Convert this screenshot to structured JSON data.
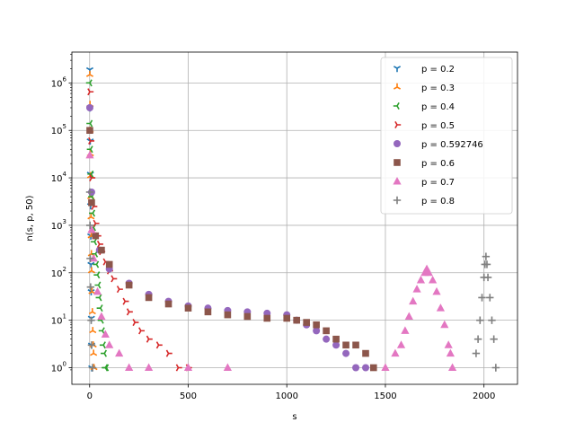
{
  "chart_data": {
    "type": "scatter",
    "title": "",
    "xlabel": "s",
    "ylabel": "n(s, p, 50)",
    "xlim": [
      -90,
      2170
    ],
    "ylim_log10": [
      -0.35,
      6.65
    ],
    "yscale": "log",
    "grid": true,
    "legend_position": "top-right",
    "x_ticks": [
      0,
      500,
      1000,
      1500,
      2000
    ],
    "x_tick_labels": [
      "0",
      "500",
      "1000",
      "1500",
      "2000"
    ],
    "y_ticks_log10": [
      0,
      1,
      2,
      3,
      4,
      5,
      6
    ],
    "series": [
      {
        "name": "p = 0.2",
        "marker": "tri_down",
        "color": "#1f77b4",
        "points": [
          [
            1,
            1900000
          ],
          [
            2,
            300000
          ],
          [
            3,
            60000
          ],
          [
            4,
            12000
          ],
          [
            5,
            2600
          ],
          [
            6,
            600
          ],
          [
            7,
            150
          ],
          [
            8,
            40
          ],
          [
            9,
            11
          ],
          [
            10,
            3
          ],
          [
            11,
            1
          ]
        ]
      },
      {
        "name": "p = 0.3",
        "marker": "tri_up",
        "color": "#ff7f0e",
        "points": [
          [
            1,
            1500000
          ],
          [
            2,
            350000
          ],
          [
            3,
            100000
          ],
          [
            4,
            32000
          ],
          [
            5,
            11000
          ],
          [
            6,
            4000
          ],
          [
            7,
            1500
          ],
          [
            8,
            600
          ],
          [
            9,
            250
          ],
          [
            10,
            110
          ],
          [
            12,
            40
          ],
          [
            14,
            15
          ],
          [
            16,
            6
          ],
          [
            18,
            3
          ],
          [
            20,
            2
          ],
          [
            22,
            1
          ]
        ]
      },
      {
        "name": "p = 0.4",
        "marker": "tri_left",
        "color": "#2ca02c",
        "points": [
          [
            1,
            1000000
          ],
          [
            3,
            140000
          ],
          [
            5,
            40000
          ],
          [
            8,
            12000
          ],
          [
            12,
            4000
          ],
          [
            16,
            1800
          ],
          [
            20,
            900
          ],
          [
            25,
            450
          ],
          [
            30,
            250
          ],
          [
            35,
            150
          ],
          [
            40,
            90
          ],
          [
            45,
            55
          ],
          [
            50,
            30
          ],
          [
            55,
            18
          ],
          [
            60,
            10
          ],
          [
            65,
            6
          ],
          [
            70,
            3
          ],
          [
            75,
            2
          ],
          [
            80,
            1
          ],
          [
            85,
            1
          ]
        ]
      },
      {
        "name": "p = 0.5",
        "marker": "tri_right",
        "color": "#d62728",
        "points": [
          [
            1,
            650000
          ],
          [
            5,
            60000
          ],
          [
            10,
            10000
          ],
          [
            20,
            2500
          ],
          [
            30,
            1100
          ],
          [
            40,
            600
          ],
          [
            50,
            400
          ],
          [
            60,
            280
          ],
          [
            80,
            170
          ],
          [
            100,
            110
          ],
          [
            120,
            75
          ],
          [
            150,
            45
          ],
          [
            180,
            25
          ],
          [
            200,
            15
          ],
          [
            230,
            9
          ],
          [
            260,
            6
          ],
          [
            300,
            4
          ],
          [
            350,
            3
          ],
          [
            400,
            2
          ],
          [
            450,
            1
          ],
          [
            500,
            1
          ]
        ]
      },
      {
        "name": "p = 0.592746",
        "marker": "circle",
        "color": "#9467bd",
        "points": [
          [
            1,
            300000
          ],
          [
            10,
            5000
          ],
          [
            50,
            300
          ],
          [
            100,
            120
          ],
          [
            200,
            60
          ],
          [
            300,
            35
          ],
          [
            400,
            25
          ],
          [
            500,
            20
          ],
          [
            600,
            18
          ],
          [
            700,
            16
          ],
          [
            800,
            15
          ],
          [
            900,
            14
          ],
          [
            1000,
            13
          ],
          [
            1050,
            10
          ],
          [
            1100,
            8
          ],
          [
            1150,
            6
          ],
          [
            1200,
            4
          ],
          [
            1250,
            3
          ],
          [
            1300,
            2
          ],
          [
            1350,
            1
          ],
          [
            1400,
            1
          ]
        ]
      },
      {
        "name": "p = 0.6",
        "marker": "square",
        "color": "#8c564b",
        "points": [
          [
            1,
            100000
          ],
          [
            10,
            3000
          ],
          [
            30,
            600
          ],
          [
            60,
            300
          ],
          [
            100,
            150
          ],
          [
            200,
            55
          ],
          [
            300,
            30
          ],
          [
            400,
            22
          ],
          [
            500,
            18
          ],
          [
            600,
            15
          ],
          [
            700,
            13
          ],
          [
            800,
            12
          ],
          [
            900,
            11
          ],
          [
            1000,
            11
          ],
          [
            1050,
            10
          ],
          [
            1100,
            9
          ],
          [
            1150,
            8
          ],
          [
            1200,
            6
          ],
          [
            1250,
            4
          ],
          [
            1300,
            3
          ],
          [
            1350,
            3
          ],
          [
            1400,
            2
          ],
          [
            1440,
            1
          ]
        ]
      },
      {
        "name": "p = 0.7",
        "marker": "triangle",
        "color": "#e377c2",
        "points": [
          [
            1,
            30000
          ],
          [
            10,
            800
          ],
          [
            20,
            200
          ],
          [
            40,
            40
          ],
          [
            60,
            12
          ],
          [
            80,
            5
          ],
          [
            100,
            3
          ],
          [
            150,
            2
          ],
          [
            200,
            1
          ],
          [
            300,
            1
          ],
          [
            500,
            1
          ],
          [
            700,
            1
          ],
          [
            1500,
            1
          ],
          [
            1550,
            2
          ],
          [
            1580,
            3
          ],
          [
            1600,
            6
          ],
          [
            1620,
            12
          ],
          [
            1640,
            25
          ],
          [
            1660,
            45
          ],
          [
            1680,
            70
          ],
          [
            1700,
            100
          ],
          [
            1710,
            120
          ],
          [
            1720,
            100
          ],
          [
            1740,
            70
          ],
          [
            1760,
            40
          ],
          [
            1780,
            18
          ],
          [
            1800,
            8
          ],
          [
            1820,
            3
          ],
          [
            1830,
            2
          ],
          [
            1840,
            1
          ]
        ]
      },
      {
        "name": "p = 0.8",
        "marker": "plus",
        "color": "#7f7f7f",
        "points": [
          [
            1,
            5000
          ],
          [
            2,
            1000
          ],
          [
            3,
            200
          ],
          [
            5,
            50
          ],
          [
            8,
            10
          ],
          [
            10,
            3
          ],
          [
            15,
            1
          ],
          [
            1960,
            2
          ],
          [
            1970,
            4
          ],
          [
            1980,
            10
          ],
          [
            1990,
            30
          ],
          [
            2000,
            80
          ],
          [
            2005,
            150
          ],
          [
            2010,
            220
          ],
          [
            2015,
            150
          ],
          [
            2020,
            80
          ],
          [
            2030,
            30
          ],
          [
            2040,
            10
          ],
          [
            2050,
            4
          ],
          [
            2060,
            1
          ]
        ]
      }
    ]
  }
}
